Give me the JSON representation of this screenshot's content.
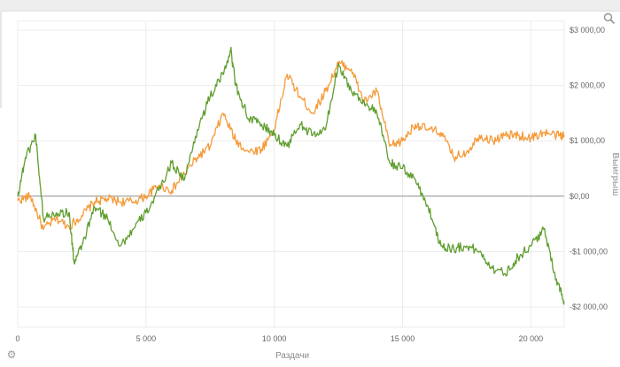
{
  "chart_data": {
    "type": "line",
    "xlabel": "Раздачи",
    "ylabel": "Выигрыш",
    "xlim": [
      0,
      21300
    ],
    "ylim": [
      -2300,
      3000
    ],
    "x_ticks": [
      0,
      5000,
      10000,
      15000,
      20000
    ],
    "x_tick_labels": [
      "0",
      "5 000",
      "10 000",
      "15 000",
      "20 000"
    ],
    "y_ticks": [
      3000,
      2000,
      1000,
      0,
      -1000,
      -2000
    ],
    "y_tick_labels": [
      "$3 000,00",
      "$2 000,00",
      "$1 000,00",
      "$0,00",
      "-$1 000,00",
      "-$2 000,00"
    ],
    "grid": true,
    "series": [
      {
        "color": "#f59a38",
        "x": [
          0,
          500,
          1000,
          1500,
          2000,
          2500,
          3000,
          3500,
          4000,
          4500,
          5000,
          5500,
          6000,
          6500,
          7000,
          7500,
          8000,
          8500,
          9000,
          9500,
          10000,
          10500,
          11000,
          11500,
          12000,
          12500,
          13000,
          13500,
          14000,
          14500,
          15000,
          15500,
          16000,
          16500,
          17000,
          17500,
          18000,
          18500,
          19000,
          19500,
          20000,
          20500,
          21000,
          21300
        ],
        "values": [
          -80,
          0,
          -600,
          -400,
          -550,
          -350,
          -100,
          -50,
          -100,
          -100,
          0,
          200,
          100,
          400,
          700,
          900,
          1500,
          1000,
          800,
          850,
          1200,
          2200,
          1800,
          1500,
          1900,
          2400,
          2300,
          1700,
          1900,
          900,
          1000,
          1300,
          1200,
          1150,
          700,
          800,
          1100,
          1000,
          1100,
          1100,
          1050,
          1150,
          1100,
          1100
        ]
      },
      {
        "color": "#5f9e2f",
        "x": [
          0,
          300,
          700,
          1000,
          1500,
          2000,
          2200,
          2500,
          3000,
          3500,
          4000,
          4500,
          5000,
          5500,
          6000,
          6500,
          7000,
          7500,
          8000,
          8300,
          8500,
          9000,
          9500,
          10000,
          10500,
          11000,
          11500,
          12000,
          12500,
          13000,
          13500,
          14000,
          14500,
          15000,
          15500,
          16000,
          16500,
          17000,
          17500,
          18000,
          18500,
          19000,
          19500,
          20000,
          20500,
          21000,
          21300
        ],
        "values": [
          0,
          700,
          1100,
          -400,
          -300,
          -300,
          -1200,
          -900,
          -200,
          -400,
          -900,
          -600,
          -300,
          100,
          600,
          300,
          1200,
          1800,
          2200,
          2650,
          2000,
          1400,
          1300,
          1100,
          900,
          1300,
          1100,
          1200,
          2400,
          1900,
          1700,
          1500,
          600,
          500,
          300,
          -200,
          -900,
          -950,
          -900,
          -1000,
          -1300,
          -1400,
          -1100,
          -900,
          -600,
          -1500,
          -1900
        ]
      }
    ]
  },
  "icons": {
    "zoom": "magnifier-icon",
    "settings": "gear-icon"
  }
}
